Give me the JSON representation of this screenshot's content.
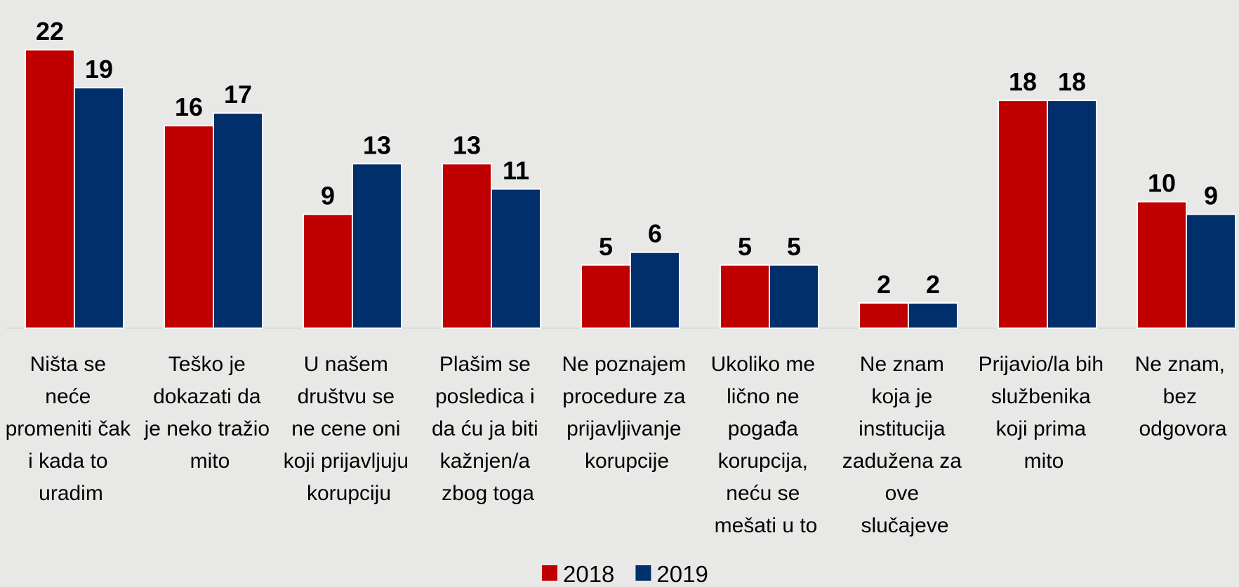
{
  "chart_data": {
    "type": "bar",
    "categories": [
      "Ništa se neće promeniti čak i kada to uradim",
      "Teško je dokazati da je neko tražio mito",
      "U našem društvu se ne cene oni koji prijavljuju korupciju",
      "Plašim se posledica i da ću ja biti kažnjen/a zbog toga",
      "Ne poznajem procedure za prijavljivanje korupcije",
      "Ukoliko me lično ne pogađa korupcija, neću se mešati u to",
      "Ne znam koja je institucija zadužena za ove slučajeve",
      "Prijavio/la bih službenika koji prima mito",
      "Ne znam, bez odgovora"
    ],
    "series": [
      {
        "name": "2018",
        "color": "#c00000",
        "values": [
          22,
          16,
          9,
          13,
          5,
          5,
          2,
          18,
          10
        ]
      },
      {
        "name": "2019",
        "color": "#002f6c",
        "values": [
          19,
          17,
          13,
          11,
          6,
          5,
          2,
          18,
          9
        ]
      }
    ]
  }
}
